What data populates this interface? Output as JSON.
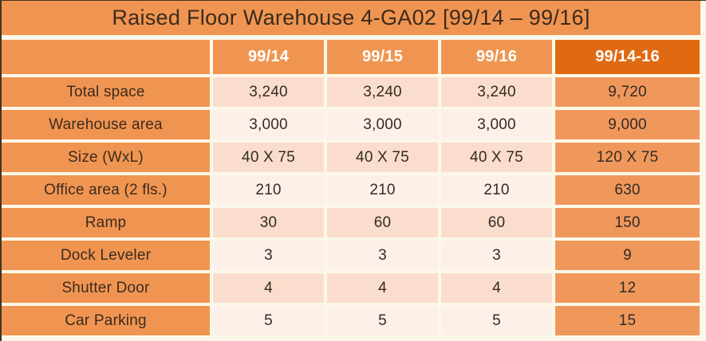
{
  "title": "Raised Floor Warehouse 4-GA02  [99/14 – 99/16]",
  "table": {
    "columns": [
      "",
      "99/14",
      "99/15",
      "99/16",
      "99/14-16"
    ],
    "rows": [
      {
        "label": "Total space",
        "values": [
          "3,240",
          "3,240",
          "3,240",
          "9,720"
        ]
      },
      {
        "label": "Warehouse area",
        "values": [
          "3,000",
          "3,000",
          "3,000",
          "9,000"
        ]
      },
      {
        "label": "Size (WxL)",
        "values": [
          "40 X 75",
          "40 X 75",
          "40 X 75",
          "120 X 75"
        ]
      },
      {
        "label": "Office area (2 fls.)",
        "values": [
          "210",
          "210",
          "210",
          "630"
        ]
      },
      {
        "label": "Ramp",
        "values": [
          "30",
          "60",
          "60",
          "150"
        ]
      },
      {
        "label": "Dock Leveler",
        "values": [
          "3",
          "3",
          "3",
          "9"
        ]
      },
      {
        "label": "Shutter Door",
        "values": [
          "4",
          "4",
          "4",
          "12"
        ]
      },
      {
        "label": "Car Parking",
        "values": [
          "5",
          "5",
          "5",
          "15"
        ]
      }
    ]
  },
  "colors": {
    "accent_orange": "#F09551",
    "accent_orange_dark": "#E06A12",
    "totals_column_orange": "#F0985C",
    "row_shade_dark": "#FADDCC",
    "row_shade_light": "#FDF0E8",
    "background_cream": "#FCF8E9",
    "frame_border": "#43341F",
    "header_text": "#FFFFFF",
    "label_text": "#3B2B1E"
  }
}
